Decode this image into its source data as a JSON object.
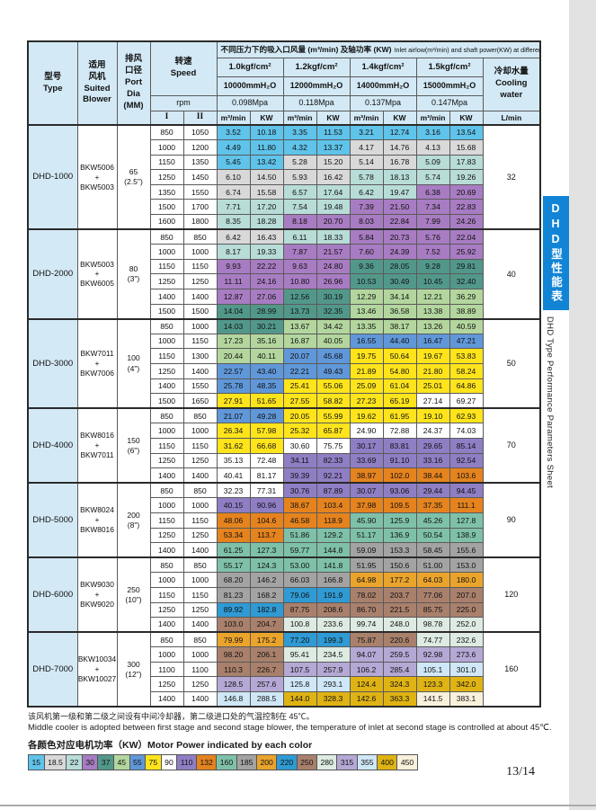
{
  "page": {
    "number": "13/14"
  },
  "sidebar": {
    "tab_cn": "DHD型性能表",
    "tab_en": "DHD Type Performance Parameters Sheet",
    "tab_color": "#1184d6"
  },
  "notes": {
    "cn": "该风机第一级和第二级之间设有中间冷却器，第二级进口处的气温控制在 45℃。",
    "en": "Middle cooler is adopted between first stage and second stage blower, the temperature of inlet at second stage is controlled at about 45℃."
  },
  "legend": {
    "title": "各颜色对应电机功率（KW）Motor Power indicated by each color",
    "items": [
      "15",
      "18.5",
      "22",
      "30",
      "37",
      "45",
      "55",
      "75",
      "90",
      "110",
      "132",
      "160",
      "185",
      "200",
      "220",
      "250",
      "280",
      "315",
      "355",
      "400",
      "450"
    ]
  },
  "power_colors": {
    "15": "#5fc3ea",
    "18.5": "#d9d9d9",
    "22": "#b8dcd8",
    "30": "#a87cc2",
    "37": "#52988a",
    "45": "#b3d69e",
    "55": "#6097d8",
    "75": "#ffe41c",
    "90": "#ffffff",
    "110": "#8f7ec4",
    "132": "#e5831e",
    "160": "#7ec1a8",
    "185": "#a3a3a3",
    "200": "#eaa42c",
    "220": "#2f9ad3",
    "250": "#a9806c",
    "280": "#ddebe2",
    "315": "#b5a8d5",
    "355": "#cfe7f6",
    "400": "#dfb314",
    "450": "#f8f1dc"
  },
  "table": {
    "header": {
      "title_cn": "不同压力下的吸入口风量 (m³/min) 及轴功率 (KW)",
      "title_en": "Inlet airlow(m³/min) and shaft power(KW) at different conditions",
      "type": "型号\nType",
      "blower": "适用\n风机\nSuited\nBlower",
      "port": "排风\n口径\nPort Dia\n(MM)",
      "speed": "转速\nSpeed",
      "rpm": "rpm",
      "speed_I": "I",
      "speed_II": "II",
      "pressures": [
        {
          "kgf": "1.0kgf/cm²",
          "mmh2o": "10000mmH₂O",
          "mpa": "0.098Mpa"
        },
        {
          "kgf": "1.2kgf/cm²",
          "mmh2o": "12000mmH₂O",
          "mpa": "0.118Mpa"
        },
        {
          "kgf": "1.4kgf/cm²",
          "mmh2o": "14000mmH₂O",
          "mpa": "0.137Mpa"
        },
        {
          "kgf": "1.5kgf/cm²",
          "mmh2o": "15000mmH₂O",
          "mpa": "0.147Mpa"
        }
      ],
      "unit_flow": "m³/min",
      "unit_power": "KW",
      "cooling": "冷却水量\nCooling water",
      "cooling_unit": "L/min"
    },
    "groups": [
      {
        "model": "DHD-1000",
        "blower": "BKW5006\n+\nBKW5003",
        "port": "65\n(2.5\")",
        "cooling": "32",
        "rows": [
          {
            "I": "850",
            "II": "1050",
            "vals": [
              "3.52",
              "10.18",
              "3.35",
              "11.53",
              "3.21",
              "12.74",
              "3.16",
              "13.54"
            ],
            "powers": [
              "15",
              "15",
              "15",
              "15"
            ]
          },
          {
            "I": "1000",
            "II": "1200",
            "vals": [
              "4.49",
              "11.80",
              "4.32",
              "13.37",
              "4.17",
              "14.76",
              "4.13",
              "15.68"
            ],
            "powers": [
              "15",
              "15",
              "18.5",
              "18.5"
            ]
          },
          {
            "I": "1150",
            "II": "1350",
            "vals": [
              "5.45",
              "13.42",
              "5.28",
              "15.20",
              "5.14",
              "16.78",
              "5.09",
              "17.83"
            ],
            "powers": [
              "15",
              "18.5",
              "18.5",
              "22"
            ]
          },
          {
            "I": "1250",
            "II": "1450",
            "vals": [
              "6.10",
              "14.50",
              "5.93",
              "16.42",
              "5.78",
              "18.13",
              "5.74",
              "19.26"
            ],
            "powers": [
              "18.5",
              "18.5",
              "22",
              "22"
            ]
          },
          {
            "I": "1350",
            "II": "1550",
            "vals": [
              "6.74",
              "15.58",
              "6.57",
              "17.64",
              "6.42",
              "19.47",
              "6.38",
              "20.69"
            ],
            "powers": [
              "18.5",
              "22",
              "22",
              "30"
            ]
          },
          {
            "I": "1500",
            "II": "1700",
            "vals": [
              "7.71",
              "17.20",
              "7.54",
              "19.48",
              "7.39",
              "21.50",
              "7.34",
              "22.83"
            ],
            "powers": [
              "22",
              "22",
              "30",
              "30"
            ]
          },
          {
            "I": "1600",
            "II": "1800",
            "vals": [
              "8.35",
              "18.28",
              "8.18",
              "20.70",
              "8.03",
              "22.84",
              "7.99",
              "24.26"
            ],
            "powers": [
              "22",
              "30",
              "30",
              "30"
            ]
          }
        ]
      },
      {
        "model": "DHD-2000",
        "blower": "BKW5003\n+\nBKW6005",
        "port": "80\n(3\")",
        "cooling": "40",
        "rows": [
          {
            "I": "850",
            "II": "850",
            "vals": [
              "6.42",
              "16.43",
              "6.11",
              "18.33",
              "5.84",
              "20.73",
              "5.76",
              "22.04"
            ],
            "powers": [
              "18.5",
              "22",
              "30",
              "30"
            ]
          },
          {
            "I": "1000",
            "II": "1000",
            "vals": [
              "8.17",
              "19.33",
              "7.87",
              "21.57",
              "7.60",
              "24.39",
              "7.52",
              "25.92"
            ],
            "powers": [
              "22",
              "30",
              "30",
              "30"
            ]
          },
          {
            "I": "1150",
            "II": "1150",
            "vals": [
              "9.93",
              "22.22",
              "9.63",
              "24.80",
              "9.36",
              "28.05",
              "9.28",
              "29.81"
            ],
            "powers": [
              "30",
              "30",
              "37",
              "37"
            ]
          },
          {
            "I": "1250",
            "II": "1250",
            "vals": [
              "11.11",
              "24.16",
              "10.80",
              "26.96",
              "10.53",
              "30.49",
              "10.45",
              "32.40"
            ],
            "powers": [
              "30",
              "30",
              "37",
              "37"
            ]
          },
          {
            "I": "1400",
            "II": "1400",
            "vals": [
              "12.87",
              "27.06",
              "12.56",
              "30.19",
              "12.29",
              "34.14",
              "12.21",
              "36.29"
            ],
            "powers": [
              "30",
              "37",
              "45",
              "45"
            ]
          },
          {
            "I": "1500",
            "II": "1500",
            "vals": [
              "14.04",
              "28.99",
              "13.73",
              "32.35",
              "13.46",
              "36.58",
              "13.38",
              "38.89"
            ],
            "powers": [
              "37",
              "37",
              "45",
              "45"
            ]
          }
        ]
      },
      {
        "model": "DHD-3000",
        "blower": "BKW7011\n+\nBKW7006",
        "port": "100\n(4\")",
        "cooling": "50",
        "rows": [
          {
            "I": "850",
            "II": "1000",
            "vals": [
              "14.03",
              "30.21",
              "13.67",
              "34.42",
              "13.35",
              "38.17",
              "13.26",
              "40.59"
            ],
            "powers": [
              "37",
              "45",
              "45",
              "45"
            ]
          },
          {
            "I": "1000",
            "II": "1150",
            "vals": [
              "17.23",
              "35.16",
              "16.87",
              "40.05",
              "16.55",
              "44.40",
              "16.47",
              "47.21"
            ],
            "powers": [
              "45",
              "45",
              "55",
              "55"
            ]
          },
          {
            "I": "1150",
            "II": "1300",
            "vals": [
              "20.44",
              "40.11",
              "20.07",
              "45.68",
              "19.75",
              "50.64",
              "19.67",
              "53.83"
            ],
            "powers": [
              "45",
              "55",
              "75",
              "75"
            ]
          },
          {
            "I": "1250",
            "II": "1400",
            "vals": [
              "22.57",
              "43.40",
              "22.21",
              "49.43",
              "21.89",
              "54.80",
              "21.80",
              "58.24"
            ],
            "powers": [
              "55",
              "55",
              "75",
              "75"
            ]
          },
          {
            "I": "1400",
            "II": "1550",
            "vals": [
              "25.78",
              "48.35",
              "25.41",
              "55.06",
              "25.09",
              "61.04",
              "25.01",
              "64.86"
            ],
            "powers": [
              "55",
              "75",
              "75",
              "75"
            ]
          },
          {
            "I": "1500",
            "II": "1650",
            "vals": [
              "27.91",
              "51.65",
              "27.55",
              "58.82",
              "27.23",
              "65.19",
              "27.14",
              "69.27"
            ],
            "powers": [
              "75",
              "75",
              "75",
              "90"
            ]
          }
        ]
      },
      {
        "model": "DHD-4000",
        "blower": "BKW8016\n+\nBKW7011",
        "port": "150\n(6\")",
        "cooling": "70",
        "rows": [
          {
            "I": "850",
            "II": "850",
            "vals": [
              "21.07",
              "49.28",
              "20.05",
              "55.99",
              "19.62",
              "61.95",
              "19.10",
              "62.93"
            ],
            "powers": [
              "55",
              "75",
              "75",
              "75"
            ]
          },
          {
            "I": "1000",
            "II": "1000",
            "vals": [
              "26.34",
              "57.98",
              "25.32",
              "65.87",
              "24.90",
              "72.88",
              "24.37",
              "74.03"
            ],
            "powers": [
              "75",
              "75",
              "90",
              "90"
            ]
          },
          {
            "I": "1150",
            "II": "1150",
            "vals": [
              "31.62",
              "66.68",
              "30.60",
              "75.75",
              "30.17",
              "83.81",
              "29.65",
              "85.14"
            ],
            "powers": [
              "75",
              "90",
              "110",
              "110"
            ]
          },
          {
            "I": "1250",
            "II": "1250",
            "vals": [
              "35.13",
              "72.48",
              "34.11",
              "82.33",
              "33.69",
              "91.10",
              "33.16",
              "92.54"
            ],
            "powers": [
              "90",
              "110",
              "110",
              "110"
            ]
          },
          {
            "I": "1400",
            "II": "1400",
            "vals": [
              "40.41",
              "81.17",
              "39.39",
              "92.21",
              "38.97",
              "102.0",
              "38.44",
              "103.6"
            ],
            "powers": [
              "90",
              "110",
              "132",
              "132"
            ]
          }
        ]
      },
      {
        "model": "DHD-5000",
        "blower": "BKW8024\n+\nBKW8016",
        "port": "200\n(8\")",
        "cooling": "90",
        "rows": [
          {
            "I": "850",
            "II": "850",
            "vals": [
              "32.23",
              "77.31",
              "30.76",
              "87.89",
              "30.07",
              "93.06",
              "29.44",
              "94.45"
            ],
            "powers": [
              "90",
              "110",
              "110",
              "110"
            ]
          },
          {
            "I": "1000",
            "II": "1000",
            "vals": [
              "40.15",
              "90.96",
              "38.67",
              "103.4",
              "37.98",
              "109.5",
              "37.35",
              "111.1"
            ],
            "powers": [
              "110",
              "132",
              "132",
              "132"
            ]
          },
          {
            "I": "1150",
            "II": "1150",
            "vals": [
              "48.06",
              "104.6",
              "46.58",
              "118.9",
              "45.90",
              "125.9",
              "45.26",
              "127.8"
            ],
            "powers": [
              "132",
              "132",
              "160",
              "160"
            ]
          },
          {
            "I": "1250",
            "II": "1250",
            "vals": [
              "53.34",
              "113.7",
              "51.86",
              "129.2",
              "51.17",
              "136.9",
              "50.54",
              "138.9"
            ],
            "powers": [
              "132",
              "160",
              "160",
              "160"
            ]
          },
          {
            "I": "1400",
            "II": "1400",
            "vals": [
              "61.25",
              "127.3",
              "59.77",
              "144.8",
              "59.09",
              "153.3",
              "58.45",
              "155.6"
            ],
            "powers": [
              "160",
              "160",
              "185",
              "185"
            ]
          }
        ]
      },
      {
        "model": "DHD-6000",
        "blower": "BKW9030\n+\nBKW9020",
        "port": "250\n(10\")",
        "cooling": "120",
        "rows": [
          {
            "I": "850",
            "II": "850",
            "vals": [
              "55.17",
              "124.3",
              "53.00",
              "141.8",
              "51.95",
              "150.6",
              "51.00",
              "153.0"
            ],
            "powers": [
              "160",
              "160",
              "185",
              "185"
            ]
          },
          {
            "I": "1000",
            "II": "1000",
            "vals": [
              "68.20",
              "146.2",
              "66.03",
              "166.8",
              "64.98",
              "177.2",
              "64.03",
              "180.0"
            ],
            "powers": [
              "185",
              "185",
              "200",
              "200"
            ]
          },
          {
            "I": "1150",
            "II": "1150",
            "vals": [
              "81.23",
              "168.2",
              "79.06",
              "191.9",
              "78.02",
              "203.7",
              "77.06",
              "207.0"
            ],
            "powers": [
              "185",
              "220",
              "250",
              "250"
            ]
          },
          {
            "I": "1250",
            "II": "1250",
            "vals": [
              "89.92",
              "182.8",
              "87.75",
              "208.6",
              "86.70",
              "221.5",
              "85.75",
              "225.0"
            ],
            "powers": [
              "220",
              "250",
              "250",
              "250"
            ]
          },
          {
            "I": "1400",
            "II": "1400",
            "vals": [
              "103.0",
              "204.7",
              "100.8",
              "233.6",
              "99.74",
              "248.0",
              "98.78",
              "252.0"
            ],
            "powers": [
              "250",
              "280",
              "280",
              "280"
            ]
          }
        ]
      },
      {
        "model": "DHD-7000",
        "blower": "BKW10034\n+\nBKW10027",
        "port": "300\n(12\")",
        "cooling": "160",
        "rows": [
          {
            "I": "850",
            "II": "850",
            "vals": [
              "79.99",
              "175.2",
              "77.20",
              "199.3",
              "75.87",
              "220.6",
              "74.77",
              "232.6"
            ],
            "powers": [
              "200",
              "220",
              "250",
              "280"
            ]
          },
          {
            "I": "1000",
            "II": "1000",
            "vals": [
              "98.20",
              "206.1",
              "95.41",
              "234.5",
              "94.07",
              "259.5",
              "92.98",
              "273.6"
            ],
            "powers": [
              "250",
              "280",
              "315",
              "315"
            ]
          },
          {
            "I": "1100",
            "II": "1100",
            "vals": [
              "110.3",
              "226.7",
              "107.5",
              "257.9",
              "106.2",
              "285.4",
              "105.1",
              "301.0"
            ],
            "powers": [
              "250",
              "315",
              "315",
              "355"
            ]
          },
          {
            "I": "1250",
            "II": "1250",
            "vals": [
              "128.5",
              "257.6",
              "125.8",
              "293.1",
              "124.4",
              "324.3",
              "123.3",
              "342.0"
            ],
            "powers": [
              "315",
              "355",
              "400",
              "400"
            ]
          },
          {
            "I": "1400",
            "II": "1400",
            "vals": [
              "146.8",
              "288.5",
              "144.0",
              "328.3",
              "142.6",
              "363.3",
              "141.5",
              "383.1"
            ],
            "powers": [
              "355",
              "400",
              "400",
              "450"
            ]
          }
        ]
      }
    ]
  }
}
